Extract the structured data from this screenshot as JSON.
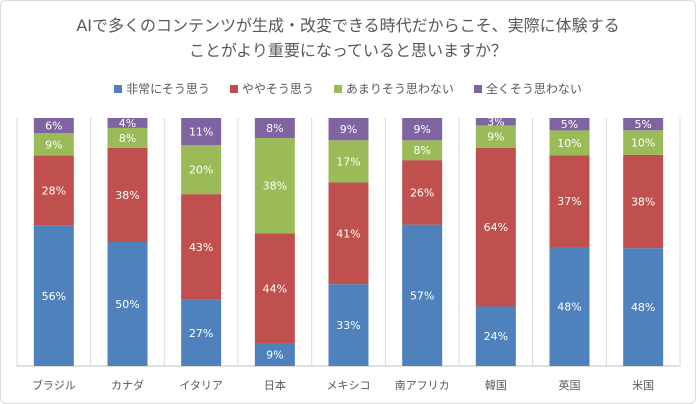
{
  "chart_data": {
    "type": "bar",
    "stacked": true,
    "percent": true,
    "title_line1": "AIで多くのコンテンツが生成・改変できる時代だからこそ、実際に体験する",
    "title_line2": "ことがより重要になっていると思いますか？",
    "categories": [
      "ブラジル",
      "カナダ",
      "イタリア",
      "日本",
      "メキシコ",
      "南アフリカ",
      "韓国",
      "英国",
      "米国"
    ],
    "series": [
      {
        "name": "非常にそう思う",
        "color": "#4F81BD",
        "values": [
          56,
          50,
          27,
          9,
          33,
          57,
          24,
          48,
          48
        ]
      },
      {
        "name": "ややそう思う",
        "color": "#C0504D",
        "values": [
          28,
          38,
          43,
          44,
          41,
          26,
          64,
          37,
          38
        ]
      },
      {
        "name": "あまりそう思わない",
        "color": "#9BBB59",
        "values": [
          9,
          8,
          20,
          38,
          17,
          8,
          9,
          10,
          10
        ]
      },
      {
        "name": "全くそう思わない",
        "color": "#8064A2",
        "values": [
          6,
          4,
          11,
          8,
          9,
          9,
          3,
          5,
          5
        ]
      }
    ],
    "legend_position": "top",
    "grid": "vertical category separators"
  }
}
